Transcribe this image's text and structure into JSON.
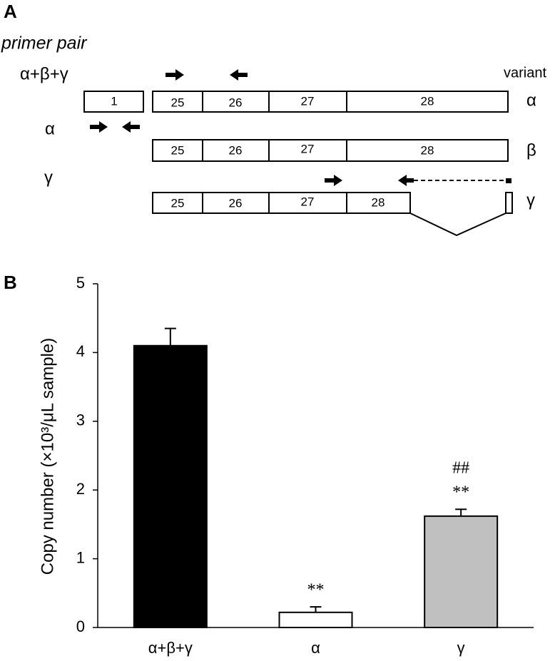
{
  "panel_a": {
    "label": "A",
    "heading": "primer pair",
    "primer_pairs": [
      "α+β+γ",
      "α",
      "γ"
    ],
    "variant_heading": "variant",
    "variants": [
      {
        "name": "α",
        "exons": [
          "1",
          "25",
          "26",
          "27",
          "28"
        ]
      },
      {
        "name": "β",
        "exons": [
          "25",
          "26",
          "27",
          "28"
        ]
      },
      {
        "name": "γ",
        "exons": [
          "25",
          "26",
          "27",
          "28"
        ]
      }
    ]
  },
  "chart_data": {
    "type": "bar",
    "panel_label": "B",
    "y_label": "Copy number (×10³/μL sample)",
    "categories": [
      "α+β+γ",
      "α",
      "γ"
    ],
    "values": [
      4.1,
      0.22,
      1.62
    ],
    "errors": [
      0.25,
      0.08,
      0.1
    ],
    "colors": [
      "#000000",
      "#ffffff",
      "#c0c0c0"
    ],
    "ylim": [
      0,
      5
    ],
    "yticks": [
      0,
      1,
      2,
      3,
      4,
      5
    ],
    "annotations": [
      {
        "text": "**",
        "category": "α"
      },
      {
        "text": "**",
        "category": "γ"
      },
      {
        "text": "##",
        "category": "γ"
      }
    ]
  }
}
